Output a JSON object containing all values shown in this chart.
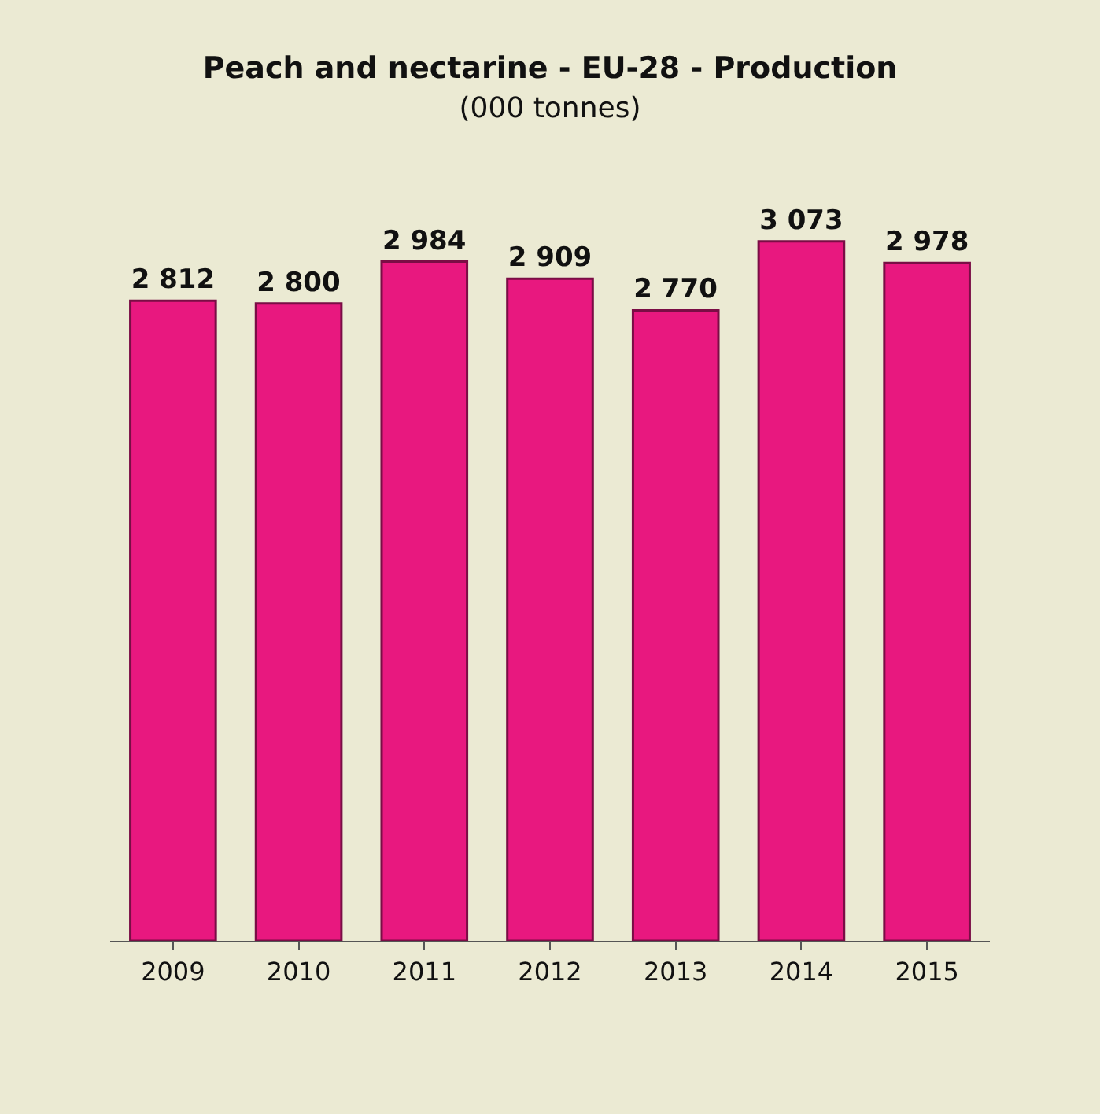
{
  "chart_data": {
    "type": "bar",
    "title": "Peach and nectarine - EU-28 - Production",
    "subtitle": "(000 tonnes)",
    "categories": [
      "2009",
      "2010",
      "2011",
      "2012",
      "2013",
      "2014",
      "2015"
    ],
    "values": [
      2812,
      2800,
      2984,
      2909,
      2770,
      3073,
      2978
    ],
    "value_labels": [
      "2 812",
      "2 800",
      "2 984",
      "2 909",
      "2 770",
      "3 073",
      "2 978"
    ],
    "color": "#e8187f",
    "tick_labels": "x"
  }
}
